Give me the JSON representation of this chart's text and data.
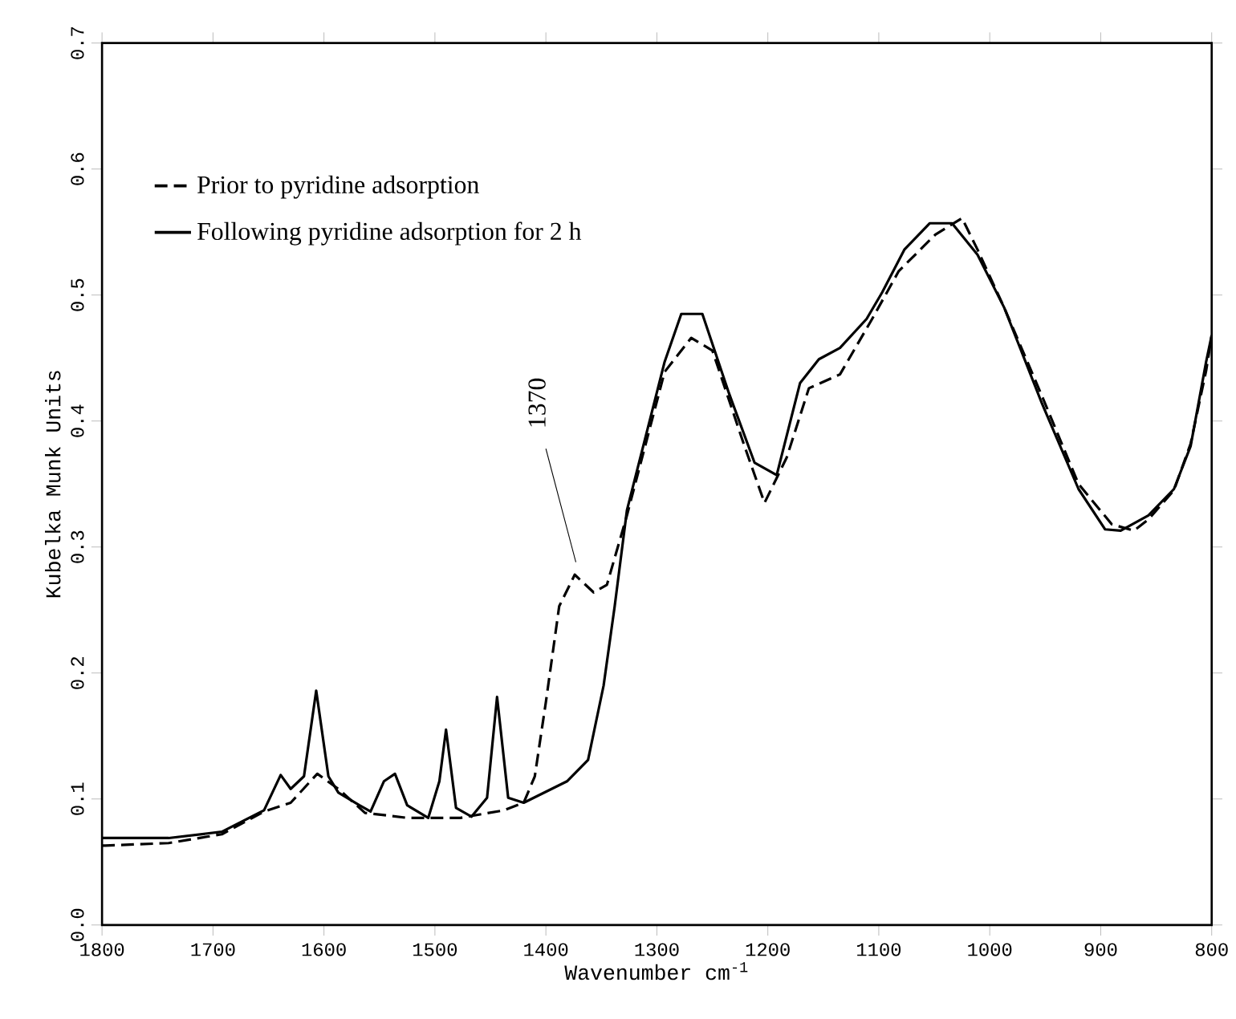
{
  "chart_data": {
    "type": "line",
    "xlabel": "Wavenumber cm$^{-1}$",
    "ylabel": "Kubelka Munk Units",
    "xlim": [
      1800,
      800
    ],
    "ylim": [
      0,
      0.7
    ],
    "xticks": [
      1800,
      1700,
      1600,
      1500,
      1400,
      1300,
      1200,
      1100,
      1000,
      900,
      800
    ],
    "yticks": [
      {
        "value": 0,
        "label": "0.0"
      },
      0.1,
      0.2,
      0.3,
      0.4,
      0.5,
      0.6,
      0.7
    ],
    "legend": "top left",
    "grid": false,
    "marker": "none",
    "annotations": [
      {
        "text": "1370",
        "x": 1370,
        "y": 0.278
      }
    ],
    "series": [
      {
        "name": "Prior to pyridine adsorption",
        "color": "#000000",
        "line_style": "dashed",
        "x": [
          1800,
          1797,
          1740,
          1692,
          1654,
          1630,
          1606,
          1587,
          1563,
          1525,
          1477,
          1438,
          1420,
          1410,
          1400,
          1388,
          1374,
          1357,
          1345,
          1327,
          1293,
          1269,
          1250,
          1221,
          1203,
          1183,
          1163,
          1135,
          1106,
          1082,
          1049,
          1025,
          1011,
          987,
          953,
          920,
          890,
          870,
          857,
          834,
          819,
          805,
          800
        ],
        "values": [
          0.063,
          0.063,
          0.065,
          0.072,
          0.09,
          0.097,
          0.12,
          0.108,
          0.089,
          0.085,
          0.085,
          0.091,
          0.097,
          0.118,
          0.177,
          0.253,
          0.278,
          0.264,
          0.27,
          0.325,
          0.439,
          0.466,
          0.456,
          0.38,
          0.335,
          0.371,
          0.426,
          0.437,
          0.481,
          0.519,
          0.548,
          0.561,
          0.536,
          0.49,
          0.42,
          0.35,
          0.318,
          0.313,
          0.322,
          0.345,
          0.382,
          0.44,
          0.468
        ]
      },
      {
        "name": "Following pyridine adsorption for 2 h",
        "color": "#000000",
        "line_style": "solid",
        "x": [
          1800,
          1797,
          1740,
          1692,
          1654,
          1639,
          1630,
          1618,
          1607,
          1596,
          1587,
          1568,
          1558,
          1546,
          1536,
          1525,
          1506,
          1496,
          1490,
          1481,
          1467,
          1453,
          1444,
          1434,
          1420,
          1381,
          1362,
          1348,
          1338,
          1327,
          1293,
          1278,
          1259,
          1235,
          1212,
          1192,
          1171,
          1154,
          1135,
          1111,
          1097,
          1077,
          1054,
          1034,
          1011,
          987,
          953,
          920,
          896,
          882,
          857,
          834,
          819,
          805,
          800
        ],
        "values": [
          0.069,
          0.069,
          0.069,
          0.074,
          0.091,
          0.119,
          0.108,
          0.118,
          0.186,
          0.118,
          0.105,
          0.095,
          0.09,
          0.114,
          0.12,
          0.095,
          0.085,
          0.114,
          0.155,
          0.093,
          0.086,
          0.101,
          0.181,
          0.101,
          0.097,
          0.114,
          0.131,
          0.19,
          0.253,
          0.329,
          0.447,
          0.485,
          0.485,
          0.422,
          0.367,
          0.357,
          0.43,
          0.449,
          0.458,
          0.481,
          0.502,
          0.536,
          0.557,
          0.557,
          0.532,
          0.49,
          0.414,
          0.346,
          0.314,
          0.313,
          0.325,
          0.346,
          0.38,
          0.447,
          0.468
        ]
      }
    ]
  }
}
